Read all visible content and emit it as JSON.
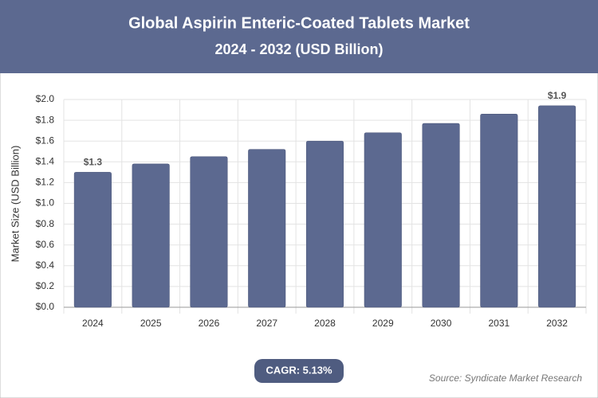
{
  "chart_data": {
    "type": "bar",
    "title": "Global Aspirin Enteric-Coated Tablets Market",
    "subtitle": "2024 - 2032 (USD Billion)",
    "y_label": "Market Size (USD Billion)",
    "categories": [
      "2024",
      "2025",
      "2026",
      "2027",
      "2028",
      "2029",
      "2030",
      "2031",
      "2032"
    ],
    "values": [
      1.3,
      1.38,
      1.45,
      1.52,
      1.6,
      1.68,
      1.77,
      1.86,
      1.94
    ],
    "value_labels": [
      "$1.3",
      null,
      null,
      null,
      null,
      null,
      null,
      null,
      "$1.9"
    ],
    "color": "#5c6990",
    "ylim": [
      0,
      2.0
    ],
    "yticks": [
      {
        "value": 0,
        "label": "$0.0"
      },
      {
        "value": 0.2,
        "label": "$0.2"
      },
      {
        "value": 0.4,
        "label": "$0.4"
      },
      {
        "value": 0.6,
        "label": "$0.6"
      },
      {
        "value": 0.8,
        "label": "$0.8"
      },
      {
        "value": 1.0,
        "label": "$1.0"
      },
      {
        "value": 1.2,
        "label": "$1.2"
      },
      {
        "value": 1.4,
        "label": "$1.4"
      },
      {
        "value": 1.6,
        "label": "$1.6"
      },
      {
        "value": 1.8,
        "label": "$1.8"
      },
      {
        "value": 2.0,
        "label": "$2.0"
      }
    ],
    "grid": true,
    "annotation": "CAGR: 5.13%",
    "source": "Source: Syndicate Market Research"
  }
}
